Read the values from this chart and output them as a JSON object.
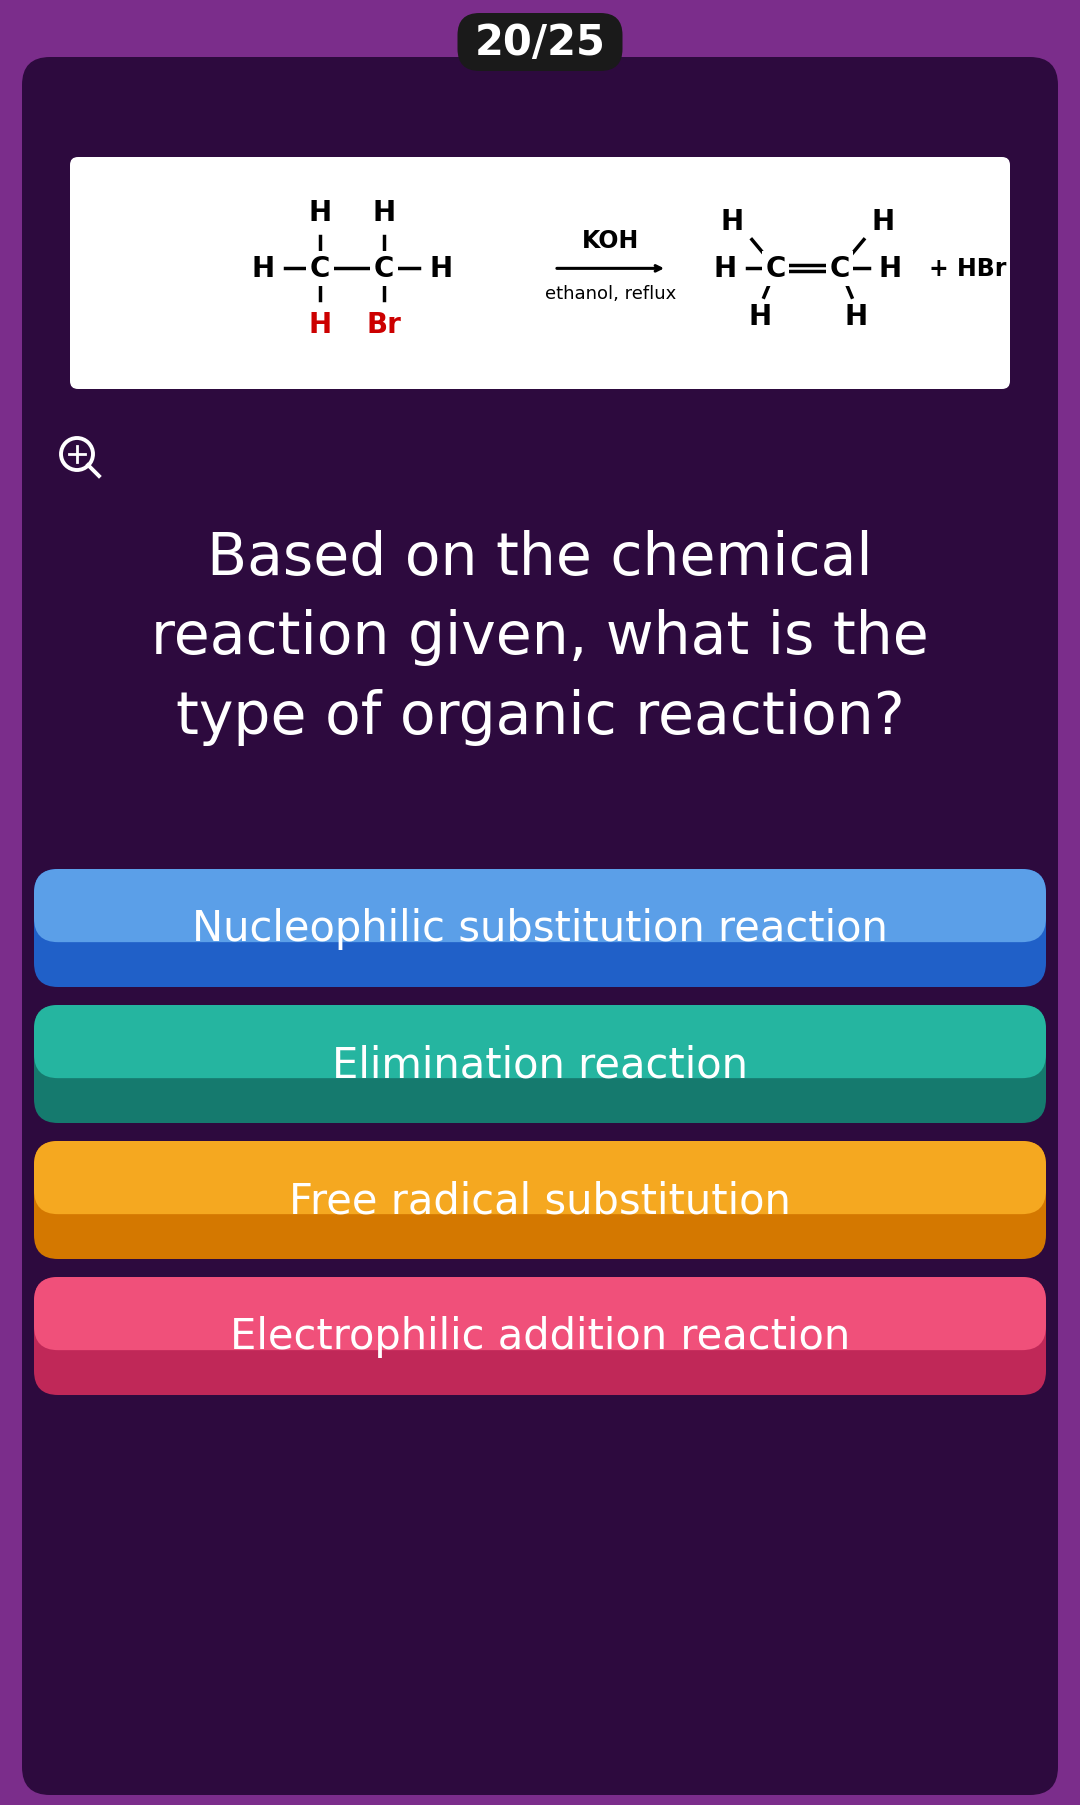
{
  "bg_color": "#7B2D8B",
  "card_bg": "#2D0A3E",
  "question_bg": "#3A0F52",
  "counter_text": "20/25",
  "counter_bg": "#1A1A1A",
  "question_text": "Based on the chemical\nreaction given, what is the\ntype of organic reaction?",
  "options": [
    {
      "text": "Nucleophilic substitution reaction",
      "color_top": "#5B9FE8",
      "color_bot": "#2060C8"
    },
    {
      "text": "Elimination reaction",
      "color_top": "#25B5A0",
      "color_bot": "#157A6E"
    },
    {
      "text": "Free radical substitution",
      "color_top": "#F5A820",
      "color_bot": "#D47800"
    },
    {
      "text": "Electrophilic addition reaction",
      "color_top": "#F0507A",
      "color_bot": "#C02858"
    }
  ],
  "question_text_color": "#FFFFFF",
  "option_text_color": "#FFFFFF",
  "img_box_color": "#FFFFFF",
  "chem_black": "#000000",
  "chem_red": "#CC0000"
}
